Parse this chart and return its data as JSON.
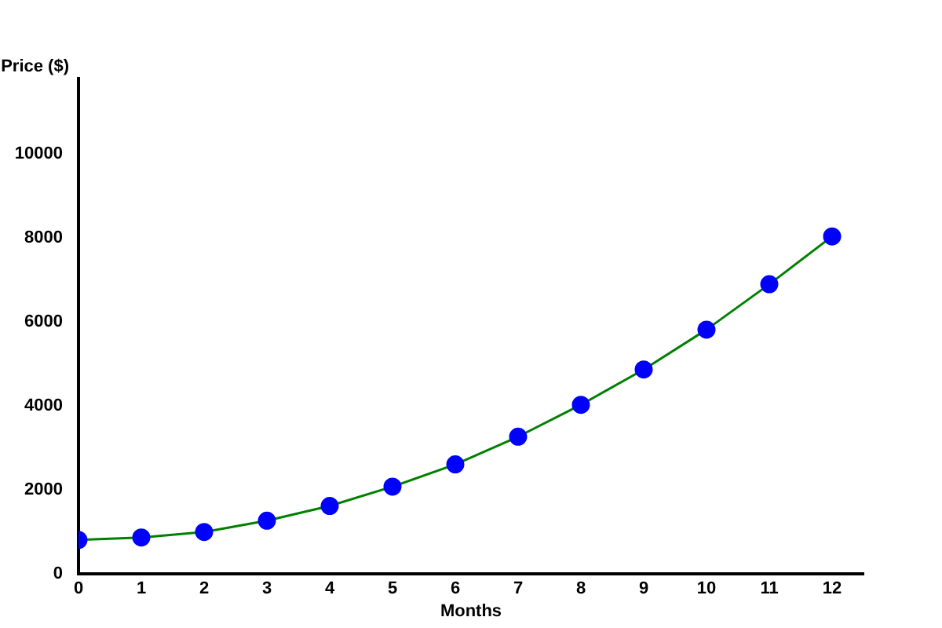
{
  "chart_data": {
    "type": "line",
    "xlabel": "Months",
    "ylabel": "Price ($)",
    "x": [
      0,
      1,
      2,
      3,
      4,
      5,
      6,
      7,
      8,
      9,
      10,
      11,
      12
    ],
    "series": [
      {
        "color": "#008000",
        "colors": [
          "#0000ff",
          "#0000ff",
          "#0000ff",
          "#0000ff",
          "#0000ff",
          "#0000ff",
          "#0000ff",
          "#0000ff",
          "#0000ff",
          "#0000ff",
          "#0000ff",
          "#0000ff",
          "#0000ff"
        ],
        "values": [
          810,
          870,
          1000,
          1270,
          1620,
          2080,
          2610,
          3270,
          4030,
          4870,
          5820,
          6900,
          8040
        ]
      }
    ],
    "marker": "circle",
    "line_style": "solid",
    "xlim": [
      0,
      12.5
    ],
    "xticks": [
      0,
      1,
      2,
      3,
      4,
      5,
      6,
      7,
      8,
      9,
      10,
      11,
      12
    ],
    "ylim": [
      0,
      11800
    ],
    "yticks": [
      0,
      2000,
      4000,
      6000,
      8000,
      10000
    ],
    "grid": false,
    "legend": false
  }
}
